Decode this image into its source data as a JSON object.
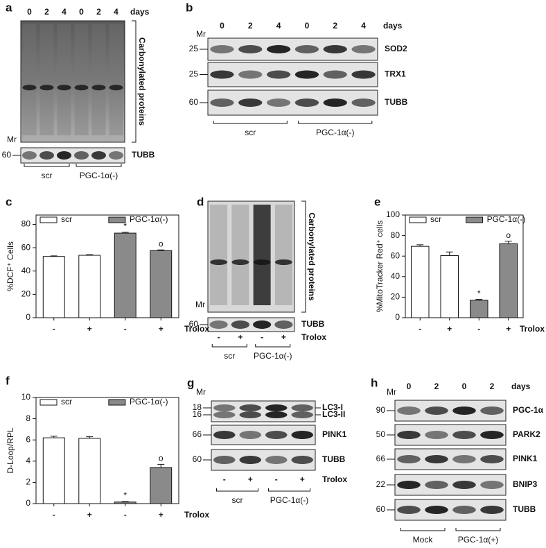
{
  "panels": {
    "a": {
      "letter": "a",
      "lanes": [
        "0",
        "2",
        "4",
        "0",
        "2",
        "4"
      ],
      "time_unit": "days",
      "side_label": "Carbonylated proteins",
      "mr": "Mr",
      "rows": [
        {
          "mw": "60",
          "label": "TUBB"
        }
      ],
      "groups": [
        "scr",
        "PGC-1α(-)"
      ]
    },
    "b": {
      "letter": "b",
      "lanes": [
        "0",
        "2",
        "4",
        "0",
        "2",
        "4"
      ],
      "time_unit": "days",
      "mr": "Mr",
      "rows": [
        {
          "mw": "25",
          "label": "SOD2"
        },
        {
          "mw": "25",
          "label": "TRX1"
        },
        {
          "mw": "60",
          "label": "TUBB"
        }
      ],
      "groups": [
        "scr",
        "PGC-1α(-)"
      ]
    },
    "d": {
      "letter": "d",
      "treatments": [
        "-",
        "+",
        "-",
        "+"
      ],
      "treatment_label": "Trolox",
      "side_label": "Carbonylated proteins",
      "mr": "Mr",
      "rows": [
        {
          "mw": "60",
          "label": "TUBB"
        }
      ],
      "groups": [
        "scr",
        "PGC-1α(-)"
      ]
    },
    "g": {
      "letter": "g",
      "treatments": [
        "-",
        "+",
        "-",
        "+"
      ],
      "treatment_label": "Trolox",
      "mr": "Mr",
      "rows": [
        {
          "mw": [
            "18",
            "16"
          ],
          "label": [
            "LC3-I",
            "LC3-II"
          ]
        },
        {
          "mw": "66",
          "label": "PINK1"
        },
        {
          "mw": "60",
          "label": "TUBB"
        }
      ],
      "groups": [
        "scr",
        "PGC-1α(-)"
      ]
    },
    "h": {
      "letter": "h",
      "lanes": [
        "0",
        "2",
        "0",
        "2"
      ],
      "time_unit": "days",
      "mr": "Mr",
      "rows": [
        {
          "mw": "90",
          "label": "PGC-1α"
        },
        {
          "mw": "50",
          "label": "PARK2"
        },
        {
          "mw": "66",
          "label": "PINK1"
        },
        {
          "mw": "22",
          "label": "BNIP3"
        },
        {
          "mw": "60",
          "label": "TUBB"
        }
      ],
      "groups": [
        "Mock",
        "PGC-1α(+)"
      ]
    }
  },
  "chart_data": [
    {
      "type": "bar",
      "panel": "c",
      "ylabel": "%DCF⁺ Cells",
      "xlabel": "Trolox",
      "categories": [
        "-",
        "+",
        "-",
        "+"
      ],
      "series": [
        {
          "name": "scr",
          "color": "#ffffff",
          "values": [
            52.5,
            53.5,
            null,
            null
          ],
          "errors": [
            0.5,
            0.5,
            null,
            null
          ]
        },
        {
          "name": "PGC-1α(-)",
          "color": "#8a8a8a",
          "values": [
            null,
            null,
            72.5,
            57.5
          ],
          "errors": [
            null,
            null,
            0.8,
            0.6
          ]
        }
      ],
      "annotations": [
        null,
        null,
        "*",
        "o"
      ],
      "ylim": [
        0,
        88
      ],
      "yticks": [
        0,
        20,
        40,
        60,
        80
      ]
    },
    {
      "type": "bar",
      "panel": "e",
      "ylabel": "%MitoTracker Red⁺ cells",
      "xlabel": "Trolox",
      "categories": [
        "-",
        "+",
        "-",
        "+"
      ],
      "series": [
        {
          "name": "scr",
          "color": "#ffffff",
          "values": [
            69.5,
            60.5,
            null,
            null
          ],
          "errors": [
            1.5,
            3.5,
            null,
            null
          ]
        },
        {
          "name": "PGC-1α(-)",
          "color": "#8a8a8a",
          "values": [
            null,
            null,
            17,
            72
          ],
          "errors": [
            null,
            null,
            0.8,
            2.5
          ]
        }
      ],
      "annotations": [
        null,
        null,
        "*",
        "o"
      ],
      "ylim": [
        0,
        100
      ],
      "yticks": [
        0,
        20,
        40,
        60,
        80,
        100
      ]
    },
    {
      "type": "bar",
      "panel": "f",
      "ylabel": "D-Loop/RPL",
      "xlabel": "Trolox",
      "categories": [
        "-",
        "+",
        "-",
        "+"
      ],
      "series": [
        {
          "name": "scr",
          "color": "#ffffff",
          "values": [
            6.2,
            6.15,
            null,
            null
          ],
          "errors": [
            0.15,
            0.15,
            null,
            null
          ]
        },
        {
          "name": "PGC-1α(-)",
          "color": "#8a8a8a",
          "values": [
            null,
            null,
            0.15,
            3.4
          ],
          "errors": [
            null,
            null,
            0.05,
            0.3
          ]
        }
      ],
      "annotations": [
        null,
        null,
        "*",
        "o"
      ],
      "ylim": [
        0,
        10
      ],
      "yticks": [
        0,
        2,
        4,
        6,
        8,
        10
      ]
    }
  ]
}
